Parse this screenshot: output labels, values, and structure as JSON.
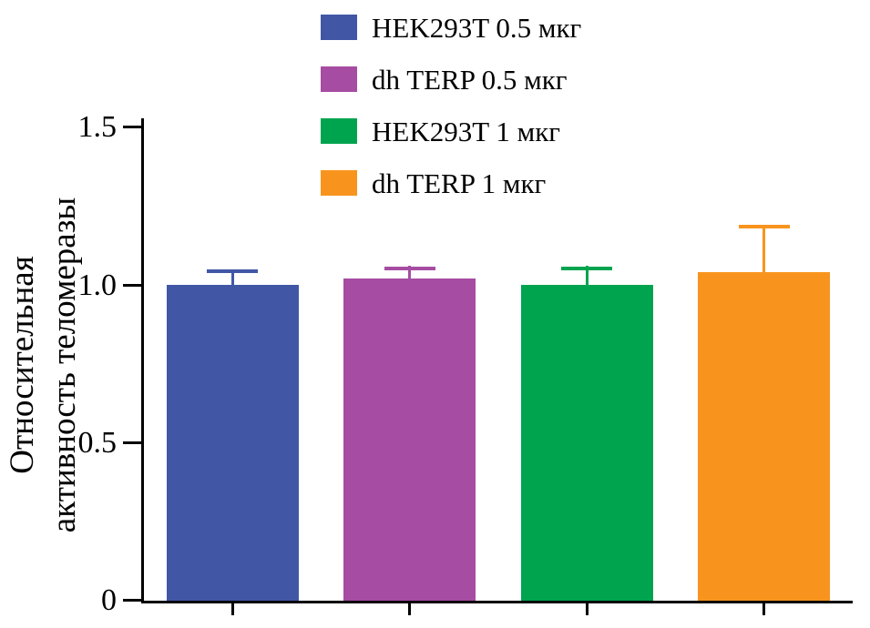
{
  "chart_data": {
    "type": "bar",
    "title": "",
    "ylabel_line1": "Относительная",
    "ylabel_line2": "активность теломеразы",
    "xlabel": "",
    "ylim": [
      0,
      1.5
    ],
    "yticks": [
      0,
      0.5,
      1.0,
      1.5
    ],
    "ytick_labels": [
      "0",
      "0.5",
      "1.0",
      "1.5"
    ],
    "grid": false,
    "legend_position": "top",
    "error_bars": "upper",
    "series": [
      {
        "name": "HEK293T 0.5 мкг",
        "value": 1.0,
        "error": 0.05,
        "color": "#4157A5"
      },
      {
        "name": "dh TERP 0.5 мкг",
        "value": 1.02,
        "error": 0.04,
        "color": "#A64CA2"
      },
      {
        "name": "HEK293T 1 мкг",
        "value": 1.0,
        "error": 0.06,
        "color": "#00A44F"
      },
      {
        "name": "dh TERP 1 мкг",
        "value": 1.04,
        "error": 0.15,
        "color": "#F8941E"
      }
    ]
  },
  "colors": {
    "axis": "#000000",
    "background": "#ffffff"
  }
}
